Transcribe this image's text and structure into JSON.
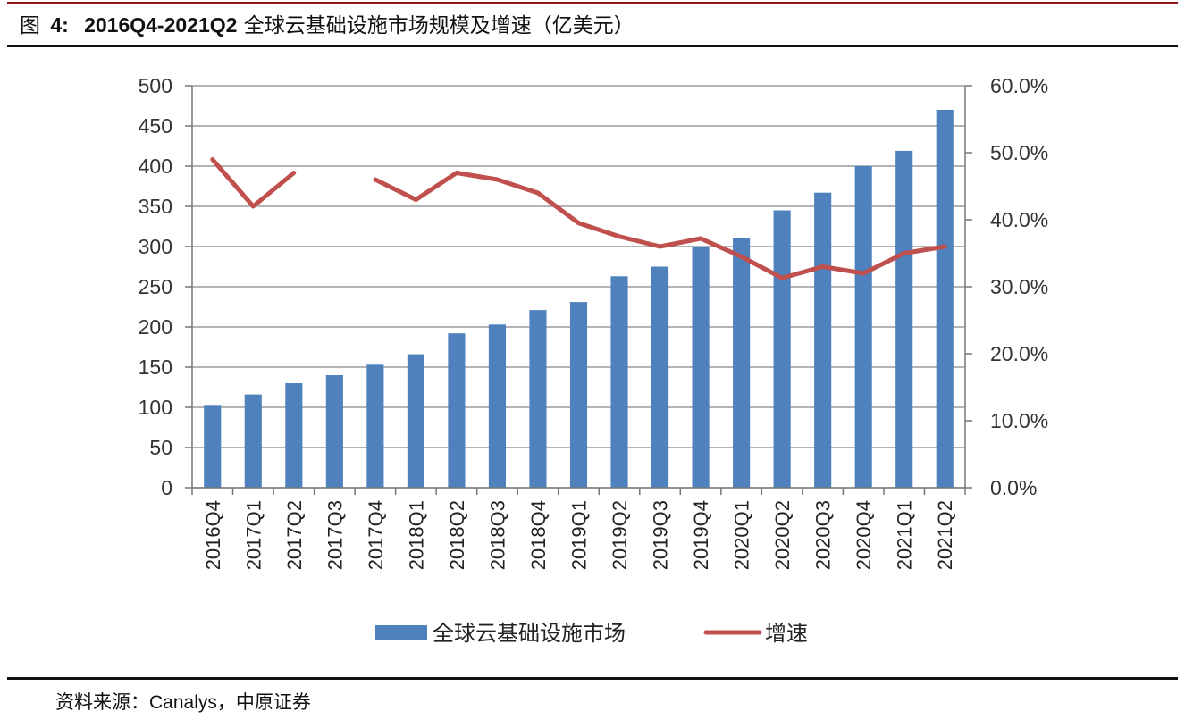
{
  "figure": {
    "label_prefix": "图",
    "label_number": "4:",
    "period": "2016Q4-2021Q2",
    "title_rest": "全球云基础设施市场规模及增速（亿美元）"
  },
  "source": {
    "prefix": "资料来源：",
    "name": "Canalys",
    "suffix": "，中原证券"
  },
  "chart_data": {
    "type": "bar",
    "categories": [
      "2016Q4",
      "2017Q1",
      "2017Q2",
      "2017Q3",
      "2017Q4",
      "2018Q1",
      "2018Q2",
      "2018Q3",
      "2018Q4",
      "2019Q1",
      "2019Q2",
      "2019Q3",
      "2019Q4",
      "2020Q1",
      "2020Q2",
      "2020Q3",
      "2020Q4",
      "2021Q1",
      "2021Q2"
    ],
    "series": [
      {
        "name": "全球云基础设施市场",
        "type": "bar",
        "axis": "left",
        "color": "#4f81bd",
        "values": [
          103,
          116,
          130,
          140,
          153,
          166,
          192,
          203,
          221,
          231,
          263,
          275,
          300,
          310,
          345,
          367,
          400,
          419,
          470
        ]
      },
      {
        "name": "增速",
        "type": "line",
        "axis": "right",
        "color": "#c0504d",
        "values": [
          49.0,
          42.0,
          47.0,
          null,
          46.0,
          43.0,
          47.0,
          46.0,
          44.0,
          39.5,
          37.5,
          36.0,
          37.2,
          34.5,
          31.3,
          33.0,
          32.0,
          35.0,
          36.0
        ]
      }
    ],
    "y_left": {
      "min": 0,
      "max": 500,
      "step": 50,
      "ticks": [
        "0",
        "50",
        "100",
        "150",
        "200",
        "250",
        "300",
        "350",
        "400",
        "450",
        "500"
      ]
    },
    "y_right": {
      "min": 0,
      "max": 60,
      "step": 10,
      "ticks": [
        "0.0%",
        "10.0%",
        "20.0%",
        "30.0%",
        "40.0%",
        "50.0%",
        "60.0%"
      ]
    },
    "grid": true,
    "legend_position": "bottom",
    "category_label_rotation": "vertical"
  }
}
